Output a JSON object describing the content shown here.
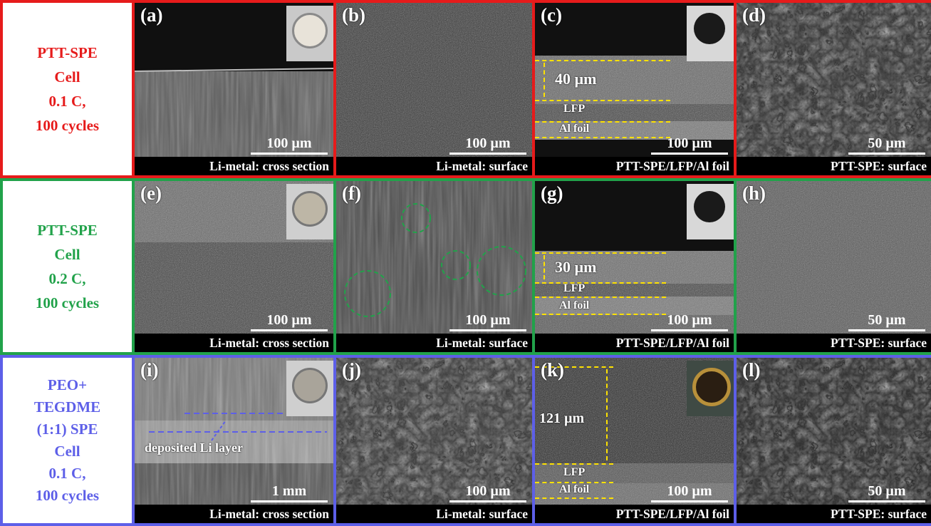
{
  "rows": [
    {
      "label_lines": [
        "PTT-SPE",
        "Cell",
        "0.1 C,",
        "100 cycles"
      ],
      "color": "#e61b1b",
      "panels": [
        {
          "tag": "(a)",
          "caption": "Li-metal: cross section",
          "scale": "100 µm"
        },
        {
          "tag": "(b)",
          "caption": "Li-metal: surface",
          "scale": "100 µm"
        },
        {
          "tag": "(c)",
          "caption": "PTT-SPE/LFP/Al foil",
          "scale": "100 µm",
          "thickness": "40 µm",
          "layer_lfp": "LFP",
          "layer_al": "Al foil"
        },
        {
          "tag": "(d)",
          "caption": "PTT-SPE: surface",
          "scale": "50 µm"
        }
      ]
    },
    {
      "label_lines": [
        "PTT-SPE",
        "Cell",
        "0.2 C,",
        "100 cycles"
      ],
      "color": "#21a24a",
      "panels": [
        {
          "tag": "(e)",
          "caption": "Li-metal: cross section",
          "scale": "100 µm"
        },
        {
          "tag": "(f)",
          "caption": "Li-metal: surface",
          "scale": "100 µm"
        },
        {
          "tag": "(g)",
          "caption": "PTT-SPE/LFP/Al foil",
          "scale": "100 µm",
          "thickness": "30 µm",
          "layer_lfp": "LFP",
          "layer_al": "Al foil"
        },
        {
          "tag": "(h)",
          "caption": "PTT-SPE: surface",
          "scale": "50 µm"
        }
      ]
    },
    {
      "label_lines": [
        "PEO+",
        "TEGDME",
        "(1:1) SPE",
        "Cell",
        "0.1 C,",
        "100 cycles"
      ],
      "color": "#5d5fe8",
      "panels": [
        {
          "tag": "(i)",
          "caption": "Li-metal: cross section",
          "scale": "1 mm",
          "note": "deposited Li layer"
        },
        {
          "tag": "(j)",
          "caption": "Li-metal: surface",
          "scale": "100 µm"
        },
        {
          "tag": "(k)",
          "caption": "PTT-SPE/LFP/Al foil",
          "scale": "100 µm",
          "thickness": "121 µm",
          "layer_lfp": "LFP",
          "layer_al": "Al foil"
        },
        {
          "tag": "(l)",
          "caption": "PTT-SPE: surface",
          "scale": "50 µm"
        }
      ]
    }
  ],
  "colors": {
    "red": "#e61b1b",
    "green": "#21a24a",
    "blue": "#5d5fe8",
    "annotation_yellow": "#ffe200"
  }
}
